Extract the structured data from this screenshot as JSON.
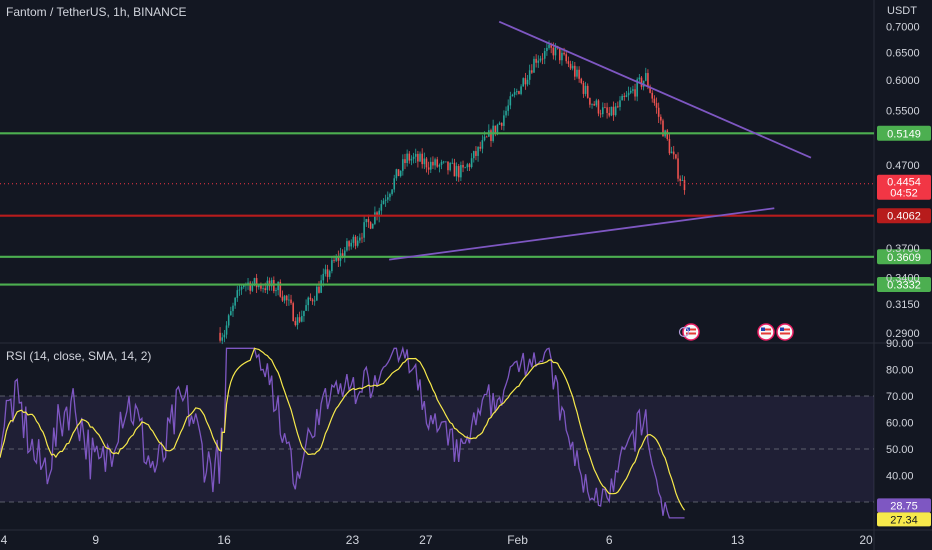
{
  "header": {
    "title": "Fantom / TetherUS, 1h, BINANCE",
    "currency": "USDT"
  },
  "rsi_panel": {
    "title": "RSI (14, close, SMA, 14, 2)"
  },
  "colors": {
    "background": "#131722",
    "up_candle": "#26a69a",
    "down_candle": "#ef5350",
    "support_line": "#4caf50",
    "red_line": "#b71c1c",
    "trendline": "#7e57c2",
    "rsi_line": "#7e57c2",
    "rsi_sma": "#f7e94b",
    "price_label": "#f23645"
  },
  "chart_data": [
    {
      "type": "candlestick",
      "x_ticks": [
        "4",
        "9",
        "16",
        "23",
        "27",
        "Feb",
        "6",
        "13",
        "20"
      ],
      "y_ticks": [
        "0.7000",
        "0.6500",
        "0.6000",
        "0.5500",
        "0.4700",
        "0.3700",
        "0.3400",
        "0.3150",
        "0.2900"
      ],
      "y_scale": "log",
      "ylim": [
        0.28,
        0.73
      ],
      "current_price": {
        "value": "0.4454",
        "countdown": "04:52"
      },
      "horizontal_lines": [
        {
          "value": 0.5149,
          "label": "0.5149",
          "color": "#4caf50"
        },
        {
          "value": 0.4062,
          "label": "0.4062",
          "color": "#b71c1c"
        },
        {
          "value": 0.3609,
          "label": "0.3609",
          "color": "#4caf50"
        },
        {
          "value": 0.3332,
          "label": "0.3332",
          "color": "#4caf50"
        }
      ],
      "close_path": [
        [
          "16 Jan",
          0.29
        ],
        [
          "17 Jan",
          0.335
        ],
        [
          "19 Jan",
          0.33
        ],
        [
          "20 Jan",
          0.3
        ],
        [
          "22 Jan",
          0.355
        ],
        [
          "24 Jan",
          0.4
        ],
        [
          "26 Jan",
          0.48
        ],
        [
          "29 Jan",
          0.46
        ],
        [
          "31 Jan",
          0.53
        ],
        [
          "2 Feb",
          0.64
        ],
        [
          "3 Feb",
          0.655
        ],
        [
          "4 Feb",
          0.62
        ],
        [
          "5 Feb",
          0.565
        ],
        [
          "6 Feb",
          0.54
        ],
        [
          "8 Feb",
          0.605
        ],
        [
          "9 Feb",
          0.515
        ],
        [
          "10 Feb",
          0.445
        ]
      ],
      "trendlines": [
        {
          "from": [
            "31 Jan",
            0.71
          ],
          "to": [
            "17 Feb",
            0.48
          ],
          "label": ""
        },
        {
          "from": [
            "25 Jan",
            0.358
          ],
          "to": [
            "15 Feb",
            0.415
          ],
          "label": ""
        }
      ],
      "event_markers": [
        "flag",
        "flag",
        "flag"
      ]
    },
    {
      "type": "line",
      "name": "RSI (14, close, SMA, 14, 2)",
      "y_ticks": [
        "90.00",
        "80.00",
        "70.00",
        "60.00",
        "50.00",
        "40.00",
        "30.00"
      ],
      "ylim": [
        20,
        90
      ],
      "band": [
        30,
        70
      ],
      "last_values": {
        "rsi": "28.75",
        "sma": "27.34"
      }
    }
  ]
}
